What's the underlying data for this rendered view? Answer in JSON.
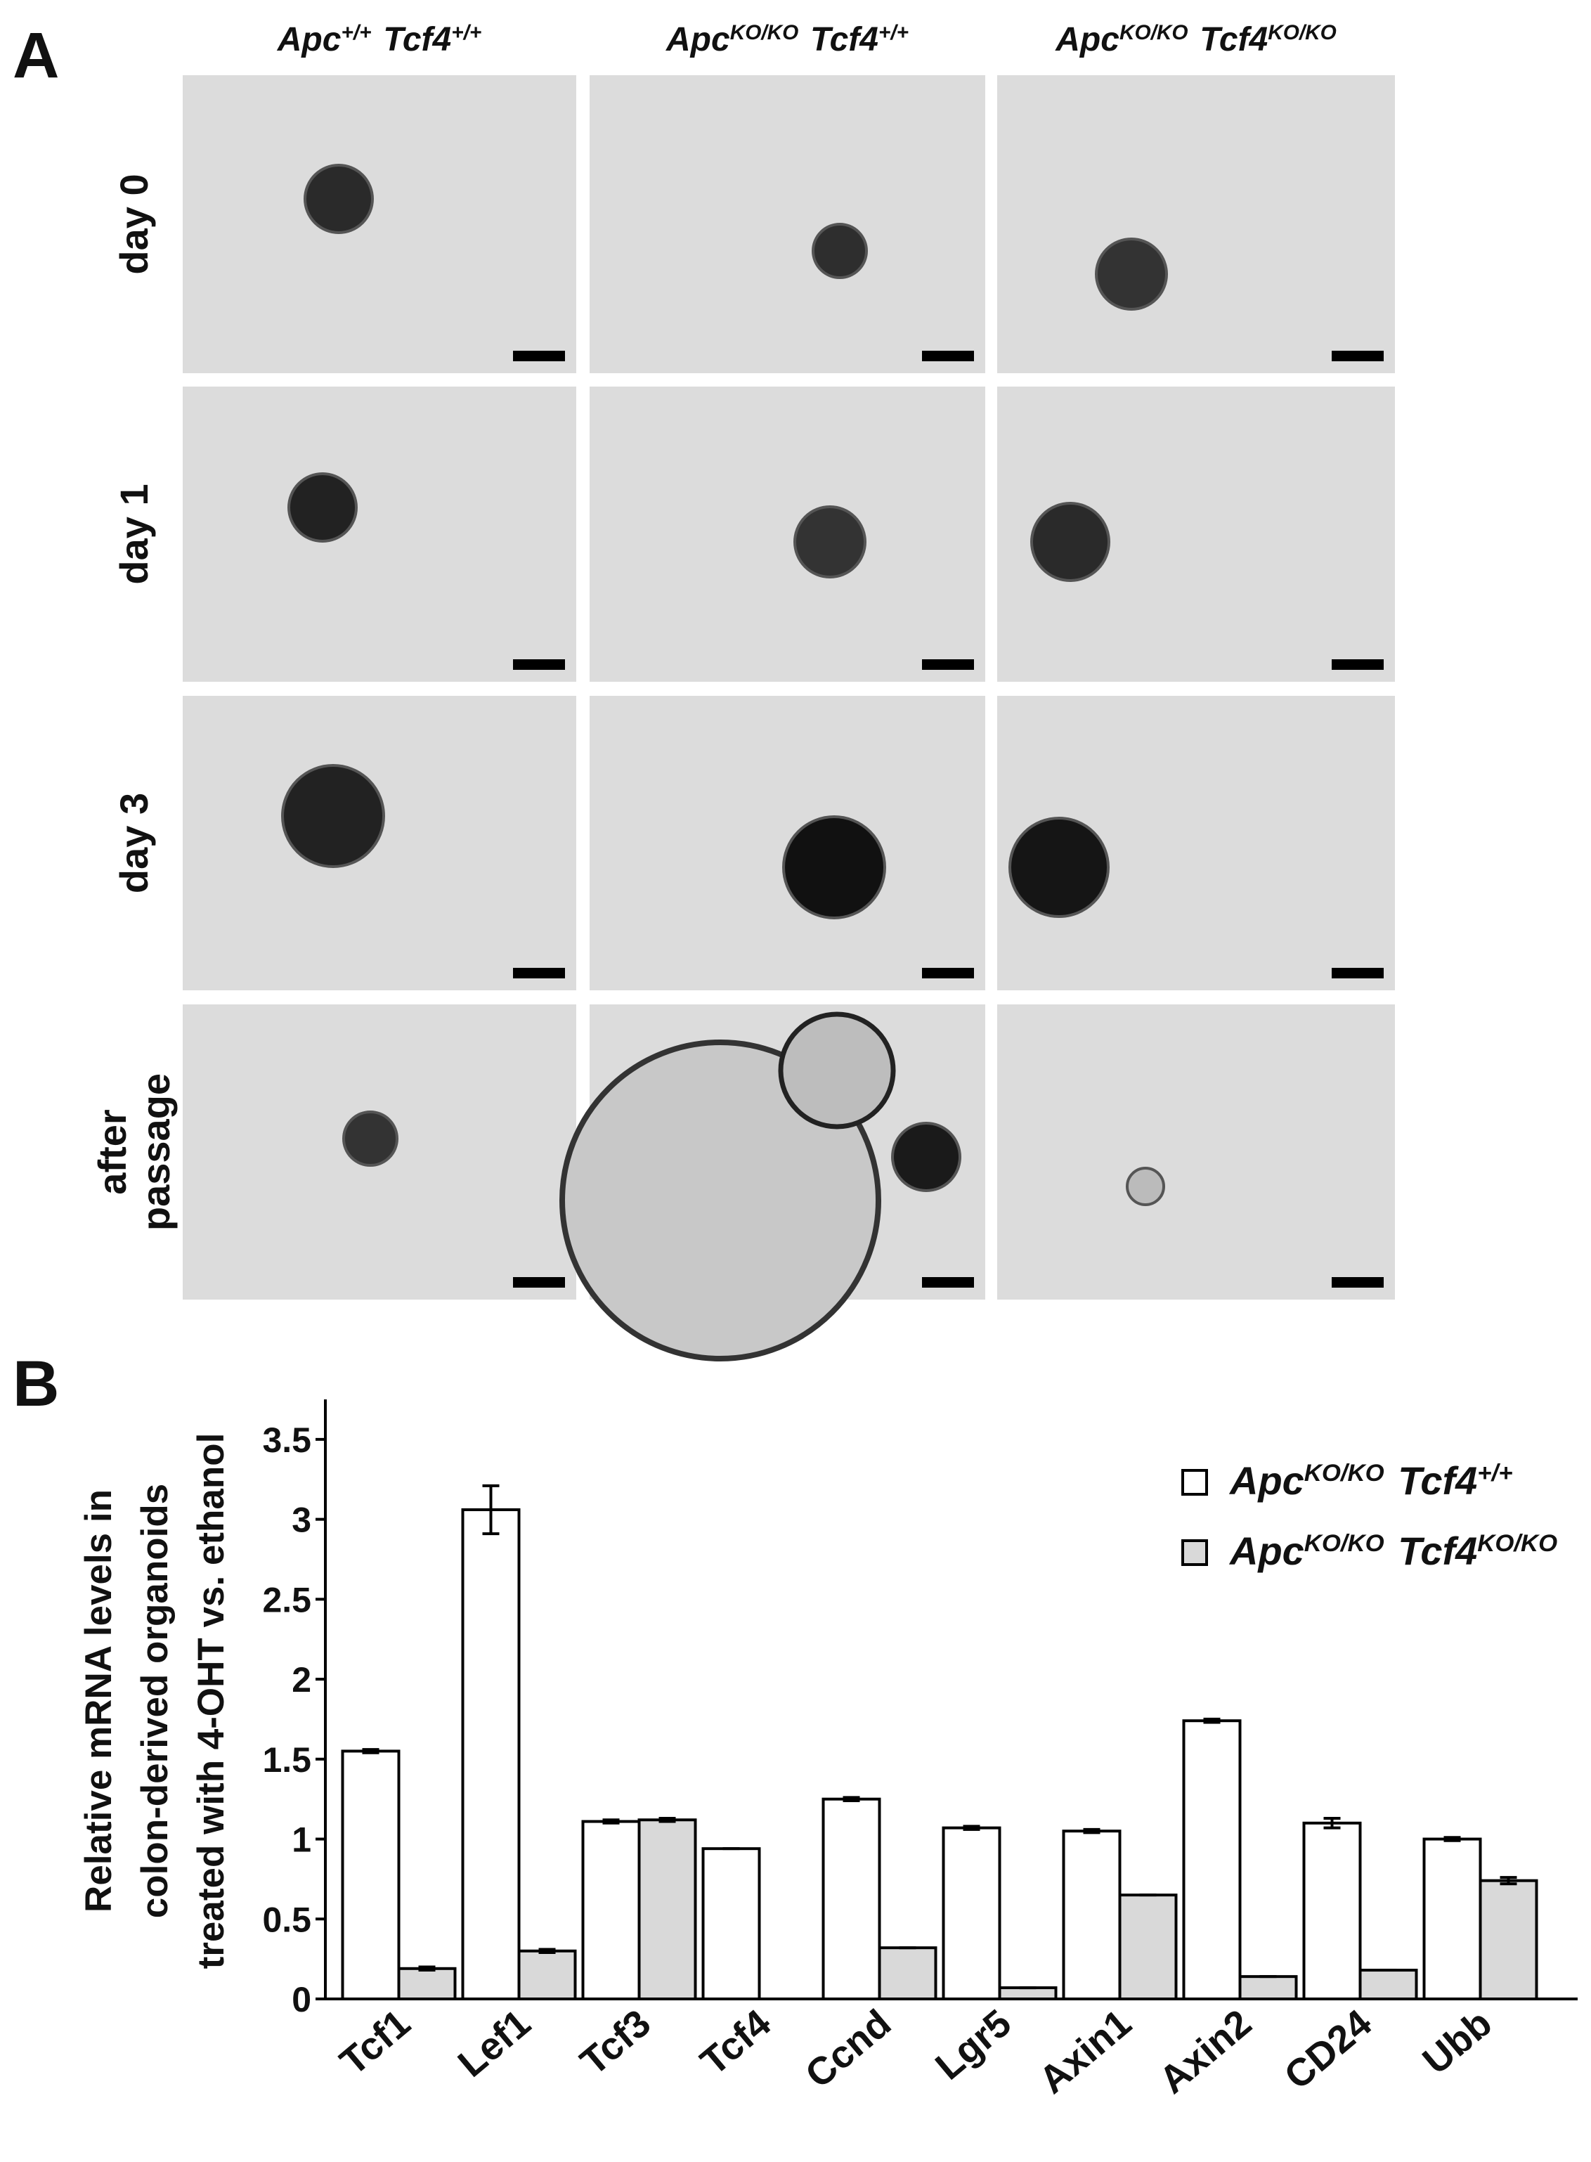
{
  "panel_a": {
    "label": "A",
    "columns": [
      [
        {
          "text": "Apc",
          "sup": "+/+"
        },
        {
          "text": "Tcf4",
          "sup": "+/+"
        }
      ],
      [
        {
          "text": "Apc",
          "sup": "KO/KO"
        },
        {
          "text": "Tcf4",
          "sup": "+/+"
        }
      ],
      [
        {
          "text": "Apc",
          "sup": "KO/KO"
        },
        {
          "text": "Tcf4",
          "sup": "KO/KO"
        }
      ]
    ],
    "rows": [
      [
        "day 0"
      ],
      [
        "day 1"
      ],
      [
        "day 3"
      ],
      [
        "after",
        "passage"
      ]
    ]
  },
  "chart_data": {
    "type": "bar",
    "label": "B",
    "y_label": [
      "Relative mRNA levels in",
      "colon-derived  organoids",
      "treated with 4-OHT vs. ethanol"
    ],
    "categories": [
      "Tcf1",
      "Lef1",
      "Tcf3",
      "Tcf4",
      "Ccnd",
      "Lgr5",
      "Axin1",
      "Axin2",
      "CD24",
      "Ubb"
    ],
    "series": [
      {
        "name": [
          {
            "text": "Apc",
            "sup": "KO/KO"
          },
          {
            "text": "Tcf4",
            "sup": "+/+"
          }
        ],
        "color": "#ffffff",
        "values": [
          1.55,
          3.06,
          1.11,
          0.94,
          1.25,
          1.07,
          1.05,
          1.74,
          1.1,
          1.0
        ],
        "errors": [
          0.01,
          0.15,
          0.01,
          0.0,
          0.01,
          0.01,
          0.01,
          0.01,
          0.03,
          0.01
        ]
      },
      {
        "name": [
          {
            "text": "Apc",
            "sup": "KO/KO"
          },
          {
            "text": "Tcf4",
            "sup": "KO/KO"
          }
        ],
        "color": "#d9d9d9",
        "values": [
          0.19,
          0.3,
          1.12,
          0,
          0.32,
          0.07,
          0.65,
          0.14,
          0.18,
          0.74
        ],
        "errors": [
          0.01,
          0.01,
          0.01,
          0,
          0.0,
          0.0,
          0.0,
          0.0,
          0.0,
          0.02
        ]
      }
    ],
    "ylim": [
      0,
      3.75
    ],
    "yticks": [
      0,
      0.5,
      1,
      1.5,
      2,
      2.5,
      3,
      3.5
    ],
    "grid": false,
    "legend": "upper right"
  }
}
